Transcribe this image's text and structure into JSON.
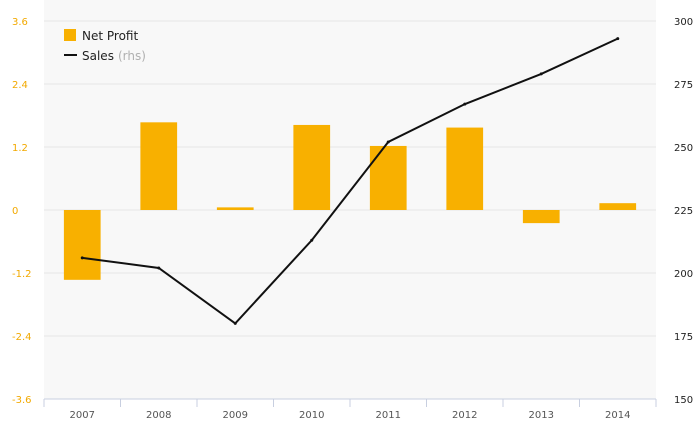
{
  "chart_data": {
    "type": "bar",
    "categories": [
      "2007",
      "2008",
      "2009",
      "2010",
      "2011",
      "2012",
      "2013",
      "2014"
    ],
    "series": [
      {
        "name": "Net Profit",
        "type": "bar",
        "axis": "left",
        "color": "#f8b000",
        "values": [
          -1.33,
          1.67,
          0.05,
          1.62,
          1.22,
          1.57,
          -0.25,
          0.13
        ]
      },
      {
        "name": "Sales",
        "legend_note": "(rhs)",
        "type": "line",
        "axis": "right",
        "color": "#111111",
        "values": [
          206,
          202,
          180,
          213,
          252,
          267,
          279,
          293
        ]
      }
    ],
    "y_left": {
      "ylim": [
        -3.6,
        3.6
      ],
      "ticks": [
        3.6,
        2.4,
        1.2,
        0,
        -1.2,
        -2.4,
        -3.6
      ],
      "tick_labels": [
        "3.6",
        "2.4",
        "1.2",
        "0",
        "-1.2",
        "-2.4",
        "-3.6"
      ],
      "color": "#f2a900"
    },
    "y_right": {
      "ylim": [
        150,
        300
      ],
      "ticks": [
        300,
        275,
        250,
        225,
        200,
        175,
        150
      ],
      "tick_labels": [
        "300",
        "275",
        "250",
        "225",
        "200",
        "175",
        "150"
      ]
    },
    "grid": true,
    "legend_position": "top-left",
    "colors": {
      "plot_background": "#f8f8f8",
      "gridline": "#e6e6e6",
      "axis_line": "#c8cfe0",
      "bar": "#f8b000",
      "line": "#111111"
    }
  }
}
